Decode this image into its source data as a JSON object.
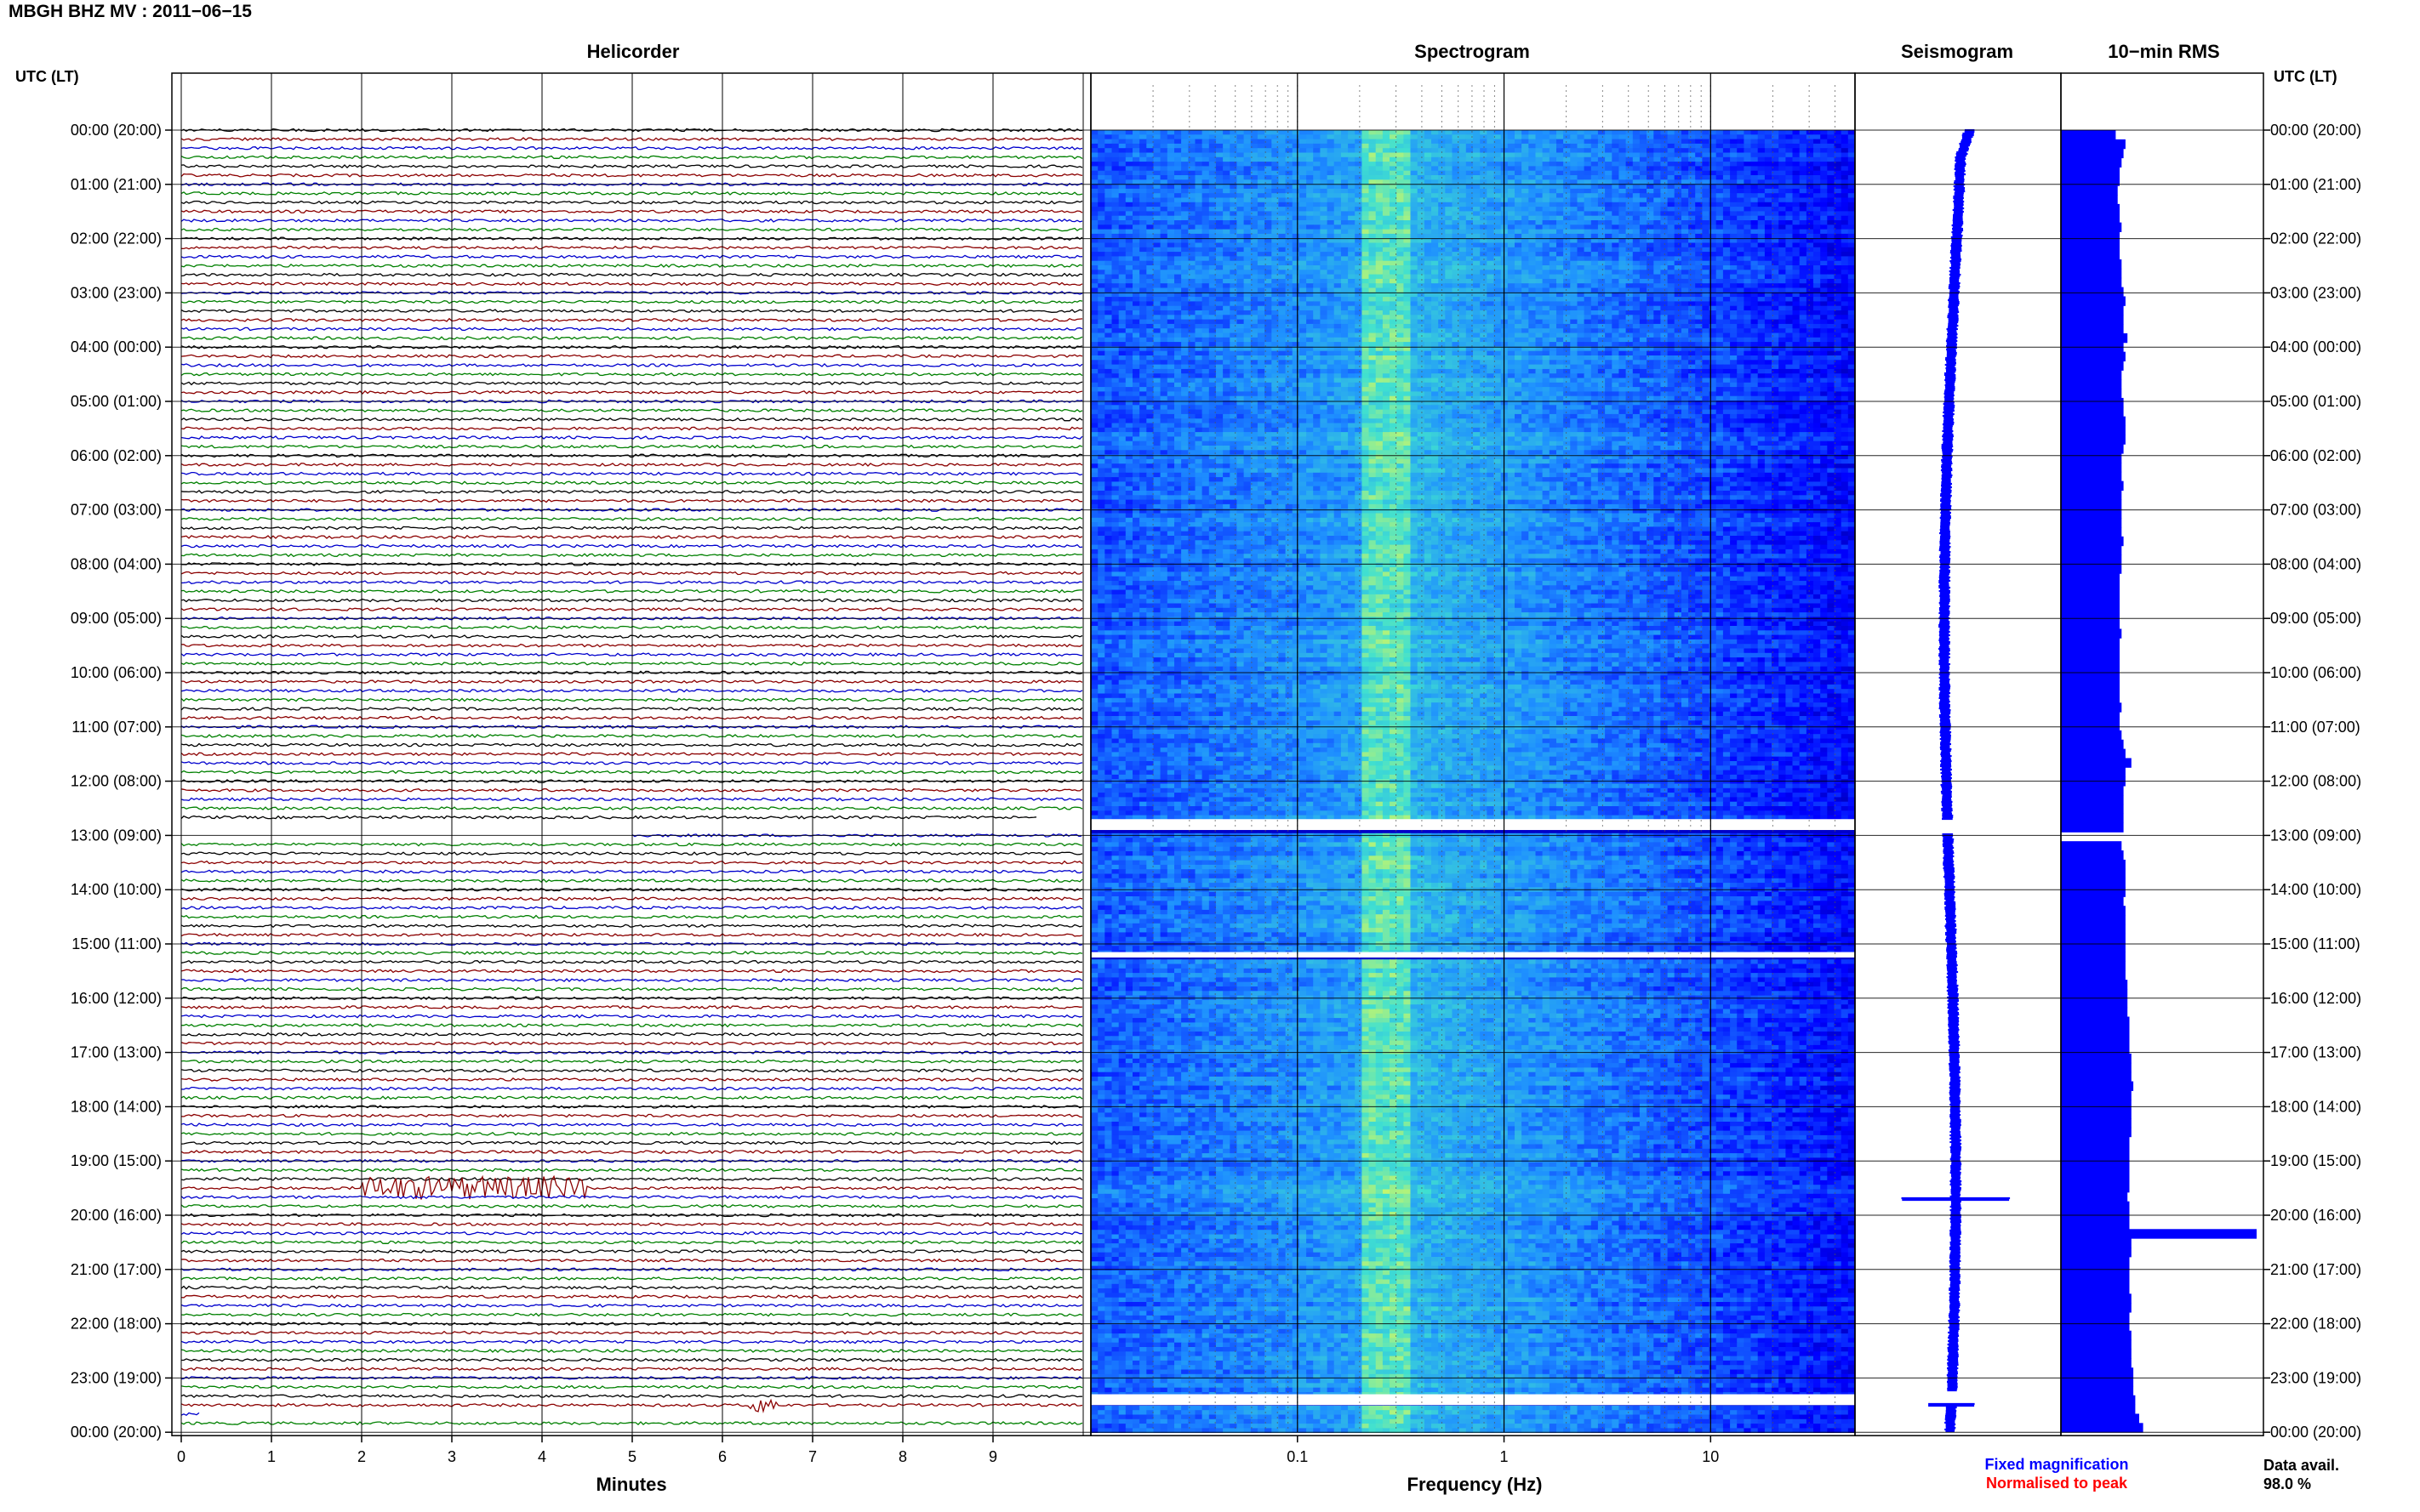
{
  "title": "MBGH BHZ MV : 2011−06−15",
  "panels": {
    "helicorder": "Helicorder",
    "spectrogram": "Spectrogram",
    "seismogram": "Seismogram",
    "rms": "10−min RMS"
  },
  "axes": {
    "left_header": "UTC (LT)",
    "right_header": "UTC (LT)",
    "minutes_label": "Minutes",
    "frequency_label": "Frequency (Hz)"
  },
  "legend": {
    "fixed": "Fixed magnification",
    "fixed_color": "#0000ff",
    "normalised": "Normalised to peak",
    "normalised_color": "#ff0000"
  },
  "data_availability": {
    "label": "Data avail.",
    "value": "98.0 %"
  },
  "chart_data": [
    {
      "type": "line",
      "name": "helicorder",
      "x_ticks": [
        "0",
        "1",
        "2",
        "3",
        "4",
        "5",
        "6",
        "7",
        "8",
        "9"
      ],
      "xlim": [
        0,
        10
      ],
      "xlabel": "Minutes",
      "trace_colors": [
        "#000000",
        "#8b0000",
        "#0000cd",
        "#008000"
      ],
      "rows_per_hour": 6,
      "time_labels": [
        "00:00 (20:00)",
        "01:00 (21:00)",
        "02:00 (22:00)",
        "03:00 (23:00)",
        "04:00 (00:00)",
        "05:00 (01:00)",
        "06:00 (02:00)",
        "07:00 (03:00)",
        "08:00 (04:00)",
        "09:00 (05:00)",
        "10:00 (06:00)",
        "11:00 (07:00)",
        "12:00 (08:00)",
        "13:00 (09:00)",
        "14:00 (10:00)",
        "15:00 (11:00)",
        "16:00 (12:00)",
        "17:00 (13:00)",
        "18:00 (14:00)",
        "19:00 (15:00)",
        "20:00 (16:00)",
        "21:00 (17:00)",
        "22:00 (18:00)",
        "23:00 (19:00)",
        "00:00 (20:00)"
      ],
      "gaps_hours": [
        [
          12.75,
          13.0
        ],
        [
          23.75,
          23.8
        ]
      ],
      "events": [
        {
          "hour": 19.5,
          "minute_start": 2.0,
          "minute_end": 4.5,
          "amplitude": "large"
        },
        {
          "hour": 23.5,
          "minute_start": 6.3,
          "minute_end": 6.6,
          "amplitude": "medium"
        }
      ]
    },
    {
      "type": "heatmap",
      "name": "spectrogram",
      "xlabel": "Frequency (Hz)",
      "x_scale": "log",
      "xlim": [
        0.01,
        50
      ],
      "x_ticks": [
        "0.1",
        "1",
        "10"
      ],
      "colormap": [
        "#00006f",
        "#0000ff",
        "#1e90ff",
        "#40e0d0",
        "#ffff40"
      ],
      "peak_band_hz": [
        0.2,
        0.35
      ],
      "gaps_hours": [
        [
          12.7,
          12.9
        ],
        [
          15.15,
          15.25
        ],
        [
          23.3,
          23.5
        ]
      ]
    },
    {
      "type": "line",
      "name": "seismogram",
      "color": "#0000ff",
      "event_hours": [
        19.7,
        23.5
      ]
    },
    {
      "type": "bar",
      "name": "10-min RMS",
      "color": "#0000ff",
      "relative_values": [
        0.28,
        0.33,
        0.32,
        0.31,
        0.3,
        0.3,
        0.29,
        0.29,
        0.3,
        0.3,
        0.31,
        0.3,
        0.3,
        0.3,
        0.31,
        0.31,
        0.31,
        0.32,
        0.33,
        0.32,
        0.32,
        0.32,
        0.34,
        0.32,
        0.33,
        0.32,
        0.31,
        0.31,
        0.31,
        0.32,
        0.32,
        0.33,
        0.33,
        0.33,
        0.32,
        0.31,
        0.31,
        0.31,
        0.32,
        0.31,
        0.31,
        0.31,
        0.31,
        0.31,
        0.32,
        0.31,
        0.31,
        0.31,
        0.3,
        0.3,
        0.3,
        0.3,
        0.3,
        0.3,
        0.31,
        0.3,
        0.3,
        0.3,
        0.3,
        0.3,
        0.3,
        0.3,
        0.31,
        0.3,
        0.3,
        0.31,
        0.32,
        0.33,
        0.36,
        0.33,
        0.33,
        0.32,
        0.32,
        0.32,
        0.32,
        0.32,
        0.0,
        0.31,
        0.32,
        0.33,
        0.33,
        0.33,
        0.33,
        0.32,
        0.33,
        0.33,
        0.33,
        0.33,
        0.33,
        0.33,
        0.33,
        0.33,
        0.34,
        0.34,
        0.34,
        0.34,
        0.35,
        0.35,
        0.35,
        0.35,
        0.36,
        0.36,
        0.36,
        0.37,
        0.36,
        0.36,
        0.36,
        0.36,
        0.36,
        0.35,
        0.35,
        0.35,
        0.35,
        0.35,
        0.35,
        0.34,
        0.35,
        0.35,
        0.35,
        1.0,
        0.36,
        0.36,
        0.35,
        0.35,
        0.35,
        0.35,
        0.36,
        0.36,
        0.35,
        0.35,
        0.36,
        0.36,
        0.36,
        0.36,
        0.37,
        0.37,
        0.37,
        0.38,
        0.38,
        0.4,
        0.42
      ]
    }
  ]
}
